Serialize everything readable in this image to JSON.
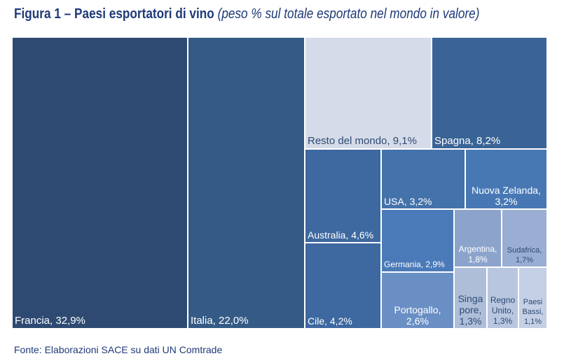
{
  "title": {
    "bold": "Figura 1 – Paesi esportatori di vino",
    "italic": "(peso % sul totale esportato nel mondo in valore)"
  },
  "source": "Fonte: Elaborazioni SACE su dati UN Comtrade",
  "chart_data": {
    "type": "treemap",
    "title": "Figura 1 – Paesi esportatori di vino (peso % sul totale esportato nel mondo in valore)",
    "unit": "%",
    "items": [
      {
        "name": "Francia",
        "value": 32.9,
        "label": "Francia, 32,9%",
        "color": "#2e4a72",
        "text": "#ffffff"
      },
      {
        "name": "Italia",
        "value": 22.0,
        "label": "Italia, 22,0%",
        "color": "#345b86",
        "text": "#ffffff"
      },
      {
        "name": "Resto del mondo",
        "value": 9.1,
        "label": "Resto del mondo, 9,1%",
        "color": "#d5dbe8",
        "text": "#2e4a72"
      },
      {
        "name": "Spagna",
        "value": 8.2,
        "label": "Spagna, 8,2%",
        "color": "#3a6496",
        "text": "#ffffff"
      },
      {
        "name": "Australia",
        "value": 4.6,
        "label": "Australia, 4,6%",
        "color": "#3d68a0",
        "text": "#ffffff"
      },
      {
        "name": "Cile",
        "value": 4.2,
        "label": "Cile, 4,2%",
        "color": "#3d68a0",
        "text": "#ffffff"
      },
      {
        "name": "USA",
        "value": 3.2,
        "label": "USA, 3,2%",
        "color": "#4472aa",
        "text": "#ffffff"
      },
      {
        "name": "Nuova Zelanda",
        "value": 3.2,
        "label": "Nuova Zelanda,\n3,2%",
        "color": "#4878b4",
        "text": "#ffffff"
      },
      {
        "name": "Germania",
        "value": 2.9,
        "label": "Germania, 2,9%",
        "color": "#4a7ab8",
        "text": "#ffffff"
      },
      {
        "name": "Portogallo",
        "value": 2.6,
        "label": "Portogallo,\n2,6%",
        "color": "#6a8fc4",
        "text": "#ffffff"
      },
      {
        "name": "Argentina",
        "value": 1.8,
        "label": "Argentina,\n1,8%",
        "color": "#8ca4cc",
        "text": "#ffffff"
      },
      {
        "name": "Sudafrica",
        "value": 1.7,
        "label": "Sudafrica,\n1,7%",
        "color": "#9aaed4",
        "text": "#2e4a72"
      },
      {
        "name": "Singapore",
        "value": 1.3,
        "label": "Singa\npore,\n1,3%",
        "color": "#aebed9",
        "text": "#2e4a72"
      },
      {
        "name": "Regno Unito",
        "value": 1.3,
        "label": "Regno\nUnito,\n1,3%",
        "color": "#b8c6e0",
        "text": "#2e4a72"
      },
      {
        "name": "Paesi Bassi",
        "value": 1.1,
        "label": "Paesi\nBassi,\n1,1%",
        "color": "#c4d0e6",
        "text": "#2e4a72"
      }
    ]
  }
}
